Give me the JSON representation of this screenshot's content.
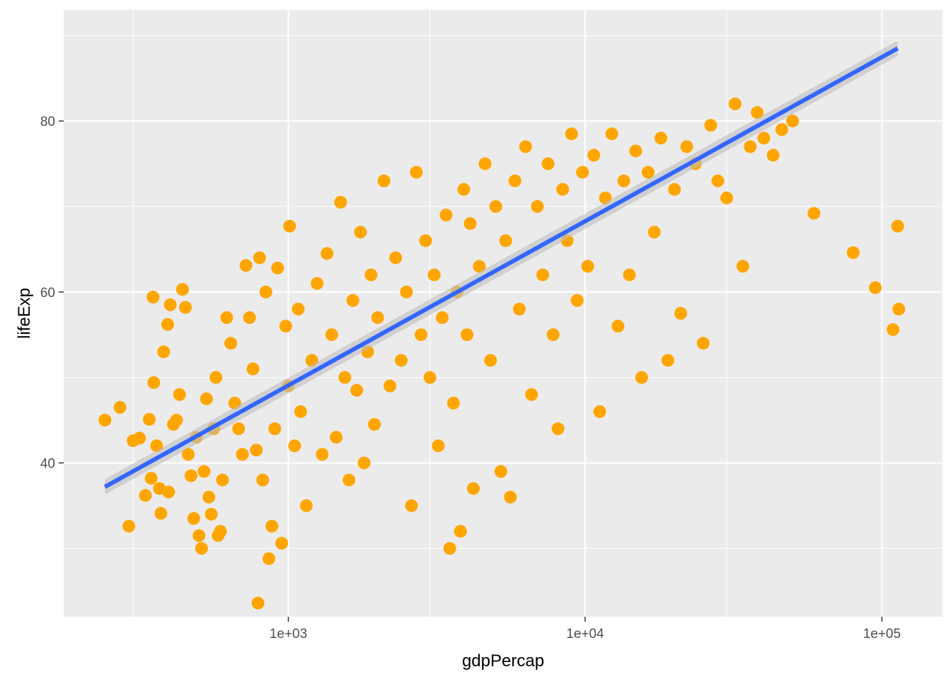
{
  "chart_data": {
    "type": "scatter",
    "xlabel": "gdpPercap",
    "ylabel": "lifeExp",
    "x_scale": "log10",
    "xlim": [
      175,
      160000
    ],
    "ylim": [
      22,
      93
    ],
    "x_ticks": [
      {
        "value": 1000,
        "label": "1e+03"
      },
      {
        "value": 10000,
        "label": "1e+04"
      },
      {
        "value": 100000,
        "label": "1e+05"
      }
    ],
    "x_minor_ticks": [
      300,
      3000,
      30000
    ],
    "y_ticks": [
      {
        "value": 40,
        "label": "40"
      },
      {
        "value": 60,
        "label": "60"
      },
      {
        "value": 80,
        "label": "80"
      }
    ],
    "y_minor_ticks": [
      30,
      50,
      70,
      90
    ],
    "grid": true,
    "legend": "none",
    "point_color": "#FFA500",
    "panel_background": "#EBEBEB",
    "grid_color": "#FFFFFF",
    "series": [
      {
        "points": [
          [
            241,
            45.0
          ],
          [
            271,
            46.5
          ],
          [
            290,
            32.6
          ],
          [
            300,
            42.6
          ],
          [
            315,
            42.9
          ],
          [
            330,
            36.2
          ],
          [
            340,
            45.1
          ],
          [
            345,
            38.2
          ],
          [
            350,
            59.4
          ],
          [
            352,
            49.4
          ],
          [
            360,
            42.0
          ],
          [
            368,
            37.0
          ],
          [
            372,
            34.1
          ],
          [
            380,
            53.0
          ],
          [
            392,
            56.2
          ],
          [
            395,
            36.6
          ],
          [
            400,
            58.5
          ],
          [
            410,
            44.5
          ],
          [
            420,
            45.0
          ],
          [
            430,
            48.0
          ],
          [
            440,
            60.3
          ],
          [
            450,
            58.2
          ],
          [
            460,
            41.0
          ],
          [
            470,
            38.5
          ],
          [
            480,
            33.5
          ],
          [
            490,
            43.0
          ],
          [
            500,
            31.5
          ],
          [
            510,
            30.0
          ],
          [
            520,
            39.0
          ],
          [
            530,
            47.5
          ],
          [
            540,
            36.0
          ],
          [
            550,
            34.0
          ],
          [
            560,
            44.0
          ],
          [
            570,
            50.0
          ],
          [
            580,
            31.5
          ],
          [
            590,
            32.0
          ],
          [
            600,
            38.0
          ],
          [
            620,
            57.0
          ],
          [
            640,
            54.0
          ],
          [
            660,
            47.0
          ],
          [
            680,
            44.0
          ],
          [
            700,
            41.0
          ],
          [
            720,
            63.1
          ],
          [
            740,
            57.0
          ],
          [
            760,
            51.0
          ],
          [
            780,
            41.5
          ],
          [
            790,
            23.6
          ],
          [
            800,
            64.0
          ],
          [
            820,
            38.0
          ],
          [
            840,
            60.0
          ],
          [
            860,
            28.8
          ],
          [
            880,
            32.6
          ],
          [
            900,
            44.0
          ],
          [
            920,
            62.8
          ],
          [
            950,
            30.6
          ],
          [
            980,
            56.0
          ],
          [
            1000,
            49.0
          ],
          [
            1010,
            67.7
          ],
          [
            1050,
            42.0
          ],
          [
            1080,
            58.0
          ],
          [
            1100,
            46.0
          ],
          [
            1150,
            35.0
          ],
          [
            1200,
            52.0
          ],
          [
            1250,
            61.0
          ],
          [
            1300,
            41.0
          ],
          [
            1350,
            64.5
          ],
          [
            1400,
            55.0
          ],
          [
            1450,
            43.0
          ],
          [
            1500,
            70.5
          ],
          [
            1550,
            50.0
          ],
          [
            1600,
            38.0
          ],
          [
            1650,
            59.0
          ],
          [
            1700,
            48.5
          ],
          [
            1750,
            67.0
          ],
          [
            1800,
            40.0
          ],
          [
            1850,
            53.0
          ],
          [
            1900,
            62.0
          ],
          [
            1950,
            44.5
          ],
          [
            2000,
            57.0
          ],
          [
            2100,
            73.0
          ],
          [
            2200,
            49.0
          ],
          [
            2300,
            64.0
          ],
          [
            2400,
            52.0
          ],
          [
            2500,
            60.0
          ],
          [
            2600,
            35.0
          ],
          [
            2700,
            74.0
          ],
          [
            2800,
            55.0
          ],
          [
            2900,
            66.0
          ],
          [
            3000,
            50.0
          ],
          [
            3100,
            62.0
          ],
          [
            3200,
            42.0
          ],
          [
            3300,
            57.0
          ],
          [
            3400,
            69.0
          ],
          [
            3500,
            30.0
          ],
          [
            3600,
            47.0
          ],
          [
            3700,
            60.0
          ],
          [
            3800,
            32.0
          ],
          [
            3900,
            72.0
          ],
          [
            4000,
            55.0
          ],
          [
            4100,
            68.0
          ],
          [
            4200,
            37.0
          ],
          [
            4400,
            63.0
          ],
          [
            4600,
            75.0
          ],
          [
            4800,
            52.0
          ],
          [
            5000,
            70.0
          ],
          [
            5200,
            39.0
          ],
          [
            5400,
            66.0
          ],
          [
            5600,
            36.0
          ],
          [
            5800,
            73.0
          ],
          [
            6000,
            58.0
          ],
          [
            6300,
            77.0
          ],
          [
            6600,
            48.0
          ],
          [
            6900,
            70.0
          ],
          [
            7200,
            62.0
          ],
          [
            7500,
            75.0
          ],
          [
            7800,
            55.0
          ],
          [
            8100,
            44.0
          ],
          [
            8400,
            72.0
          ],
          [
            8700,
            66.0
          ],
          [
            9000,
            78.5
          ],
          [
            9400,
            59.0
          ],
          [
            9800,
            74.0
          ],
          [
            10200,
            63.0
          ],
          [
            10700,
            76.0
          ],
          [
            11200,
            46.0
          ],
          [
            11700,
            71.0
          ],
          [
            12300,
            78.5
          ],
          [
            12900,
            56.0
          ],
          [
            13500,
            73.0
          ],
          [
            14100,
            62.0
          ],
          [
            14800,
            76.5
          ],
          [
            15500,
            50.0
          ],
          [
            16300,
            74.0
          ],
          [
            17100,
            67.0
          ],
          [
            18000,
            78.0
          ],
          [
            19000,
            52.0
          ],
          [
            20000,
            72.0
          ],
          [
            21000,
            57.5
          ],
          [
            22000,
            77.0
          ],
          [
            23500,
            75.0
          ],
          [
            25000,
            54.0
          ],
          [
            26500,
            79.5
          ],
          [
            28000,
            73.0
          ],
          [
            30000,
            71.0
          ],
          [
            32000,
            82.0
          ],
          [
            34000,
            63.0
          ],
          [
            36000,
            77.0
          ],
          [
            38000,
            81.0
          ],
          [
            40000,
            78.0
          ],
          [
            43000,
            76.0
          ],
          [
            46000,
            79.0
          ],
          [
            50000,
            80.0
          ],
          [
            59000,
            69.2
          ],
          [
            80000,
            64.6
          ],
          [
            95000,
            60.5
          ],
          [
            109000,
            55.6
          ],
          [
            113000,
            67.7
          ],
          [
            114000,
            58.0
          ]
        ]
      },
      {
        "name": "",
        "fit": "linear",
        "line_color": "#3366FF",
        "ribbon_color": "#BEBEBE",
        "x": [
          241,
          113000
        ],
        "y": [
          37.2,
          88.5
        ],
        "ci_halfwidth": 0.9
      }
    ]
  }
}
